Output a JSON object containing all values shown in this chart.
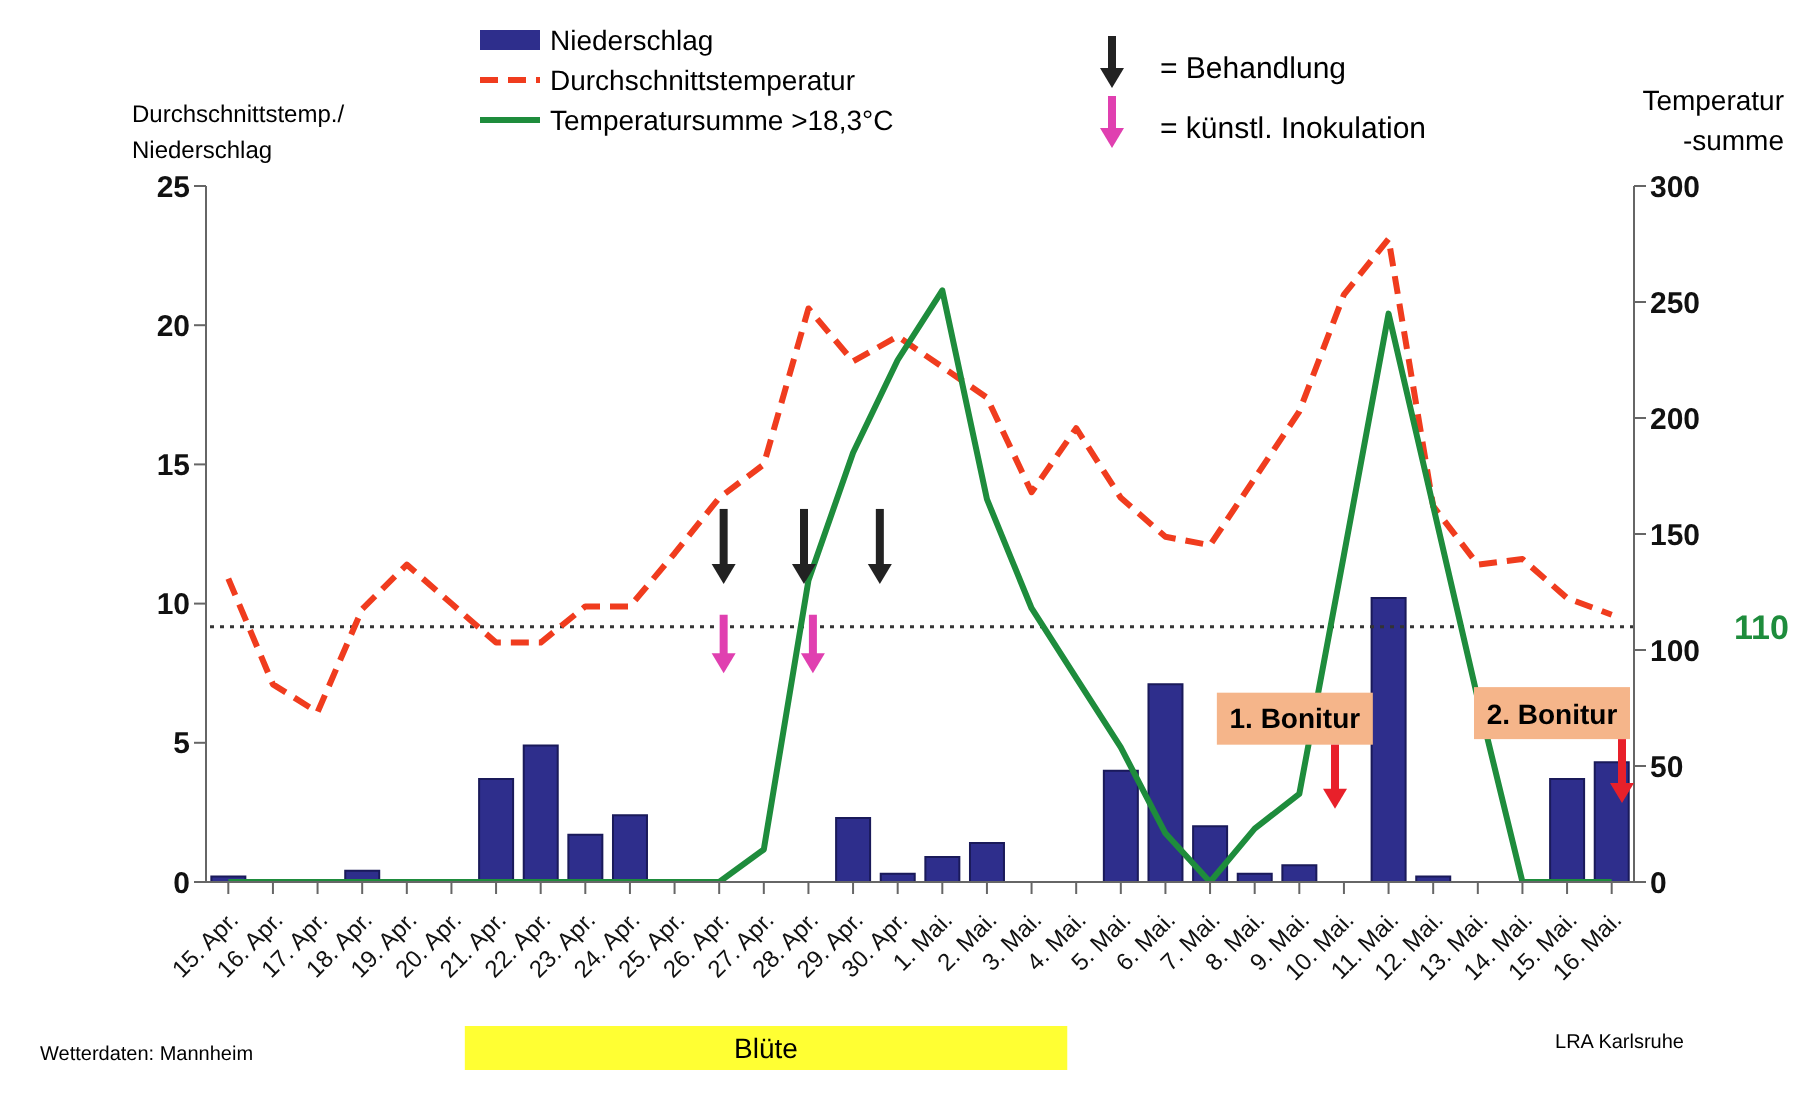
{
  "chart_data": {
    "type": "bar",
    "title": null,
    "ylabel": "Durchschnittstemp./\nNiederschlag",
    "y2label": "Temperatur\n-summe",
    "categories": [
      "15. Apr.",
      "16. Apr.",
      "17. Apr.",
      "18. Apr.",
      "19. Apr.",
      "20. Apr.",
      "21. Apr.",
      "22. Apr.",
      "23. Apr.",
      "24. Apr.",
      "25. Apr.",
      "26. Apr.",
      "27. Apr.",
      "28. Apr.",
      "29. Apr.",
      "30. Apr.",
      "1. Mai.",
      "2. Mai.",
      "3. Mai.",
      "4. Mai.",
      "5. Mai.",
      "6. Mai.",
      "7. Mai.",
      "8. Mai.",
      "9. Mai.",
      "10. Mai.",
      "11. Mai.",
      "12. Mai.",
      "13. Mai.",
      "14. Mai.",
      "15. Mai.",
      "16. Mai."
    ],
    "series": [
      {
        "name": "Niederschlag",
        "color": "#2e2e8c",
        "values": [
          0.2,
          0,
          0,
          0.4,
          0,
          0,
          3.7,
          4.9,
          1.7,
          2.4,
          0,
          0,
          0,
          0,
          2.3,
          0.3,
          0.9,
          1.4,
          0,
          0,
          4.0,
          7.1,
          2.0,
          0.3,
          0.6,
          0,
          10.2,
          0.2,
          0,
          0,
          3.7,
          4.3
        ]
      },
      {
        "name": "Durchschnittstemperatur",
        "type": "line",
        "color": "#f03c1e",
        "line_style": "dashed",
        "values": [
          10.9,
          7.1,
          6.1,
          9.8,
          11.4,
          10.0,
          8.6,
          8.6,
          9.9,
          9.9,
          11.8,
          13.8,
          15.0,
          20.6,
          18.7,
          19.6,
          18.5,
          17.4,
          14.0,
          16.3,
          13.8,
          12.4,
          12.1,
          14.5,
          16.9,
          21.1,
          23.1,
          13.5,
          11.4,
          11.6,
          10.2,
          9.6
        ]
      },
      {
        "name": "Temperatursumme >18,3°C",
        "type": "line",
        "axis": "y2",
        "color": "#1e8c3c",
        "line_style": "solid",
        "values": [
          0,
          0,
          0,
          0,
          0,
          0,
          0,
          0,
          0,
          0,
          0,
          0,
          14,
          130,
          185,
          225,
          255,
          165,
          118,
          88,
          58,
          21,
          0,
          23,
          38,
          141,
          245,
          162,
          79,
          0,
          0,
          0
        ]
      }
    ],
    "ylim": [
      0,
      25
    ],
    "yticks": [
      0,
      5,
      10,
      15,
      20,
      25
    ],
    "y2lim": [
      0,
      300
    ],
    "y2ticks": [
      0,
      50,
      100,
      150,
      200,
      250,
      300
    ],
    "ref_lines": [
      {
        "axis": "y2",
        "value": 110,
        "label": "110",
        "color": "#333333",
        "line_style": "dotted"
      }
    ],
    "annotations": [
      "= Behandlung",
      "= künstl. Inokulation",
      "1. Bonitur",
      "2. Bonitur",
      "Wetterdaten: Mannheim",
      "LRA Karlsruhe",
      "Blüte"
    ],
    "grid": false,
    "legend": "top",
    "marker": "none"
  }
}
